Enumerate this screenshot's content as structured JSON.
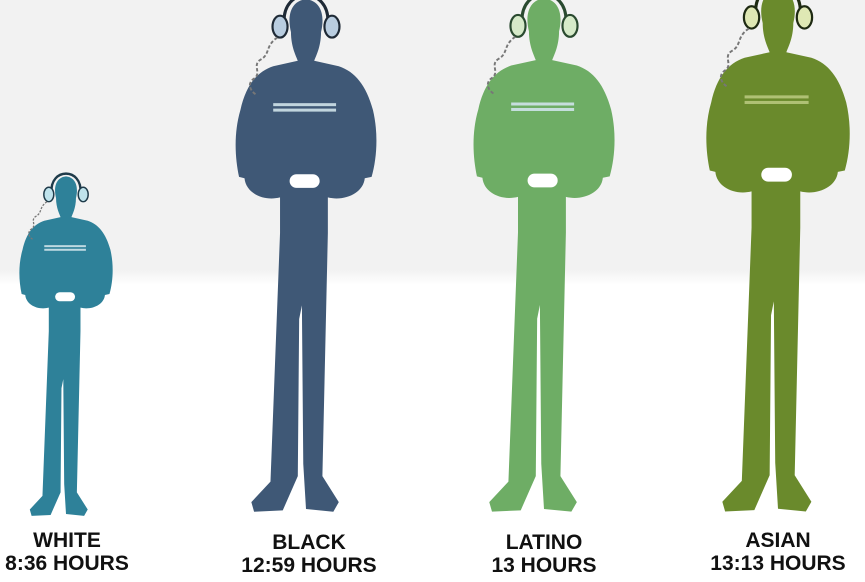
{
  "chart_data": {
    "type": "bar",
    "categories": [
      "WHITE",
      "BLACK",
      "LATINO",
      "ASIAN"
    ],
    "value_labels": [
      "8:36 HOURS",
      "12:59 HOURS",
      "13 HOURS",
      "13:13 HOURS"
    ],
    "values": [
      8.6,
      12.98,
      13.0,
      13.22
    ],
    "unit": "hours",
    "marks": "person-silhouette",
    "colors": [
      "#2e8199",
      "#3f5876",
      "#6ead65",
      "#6a8a2c"
    ],
    "grid": false,
    "legend": "none"
  }
}
